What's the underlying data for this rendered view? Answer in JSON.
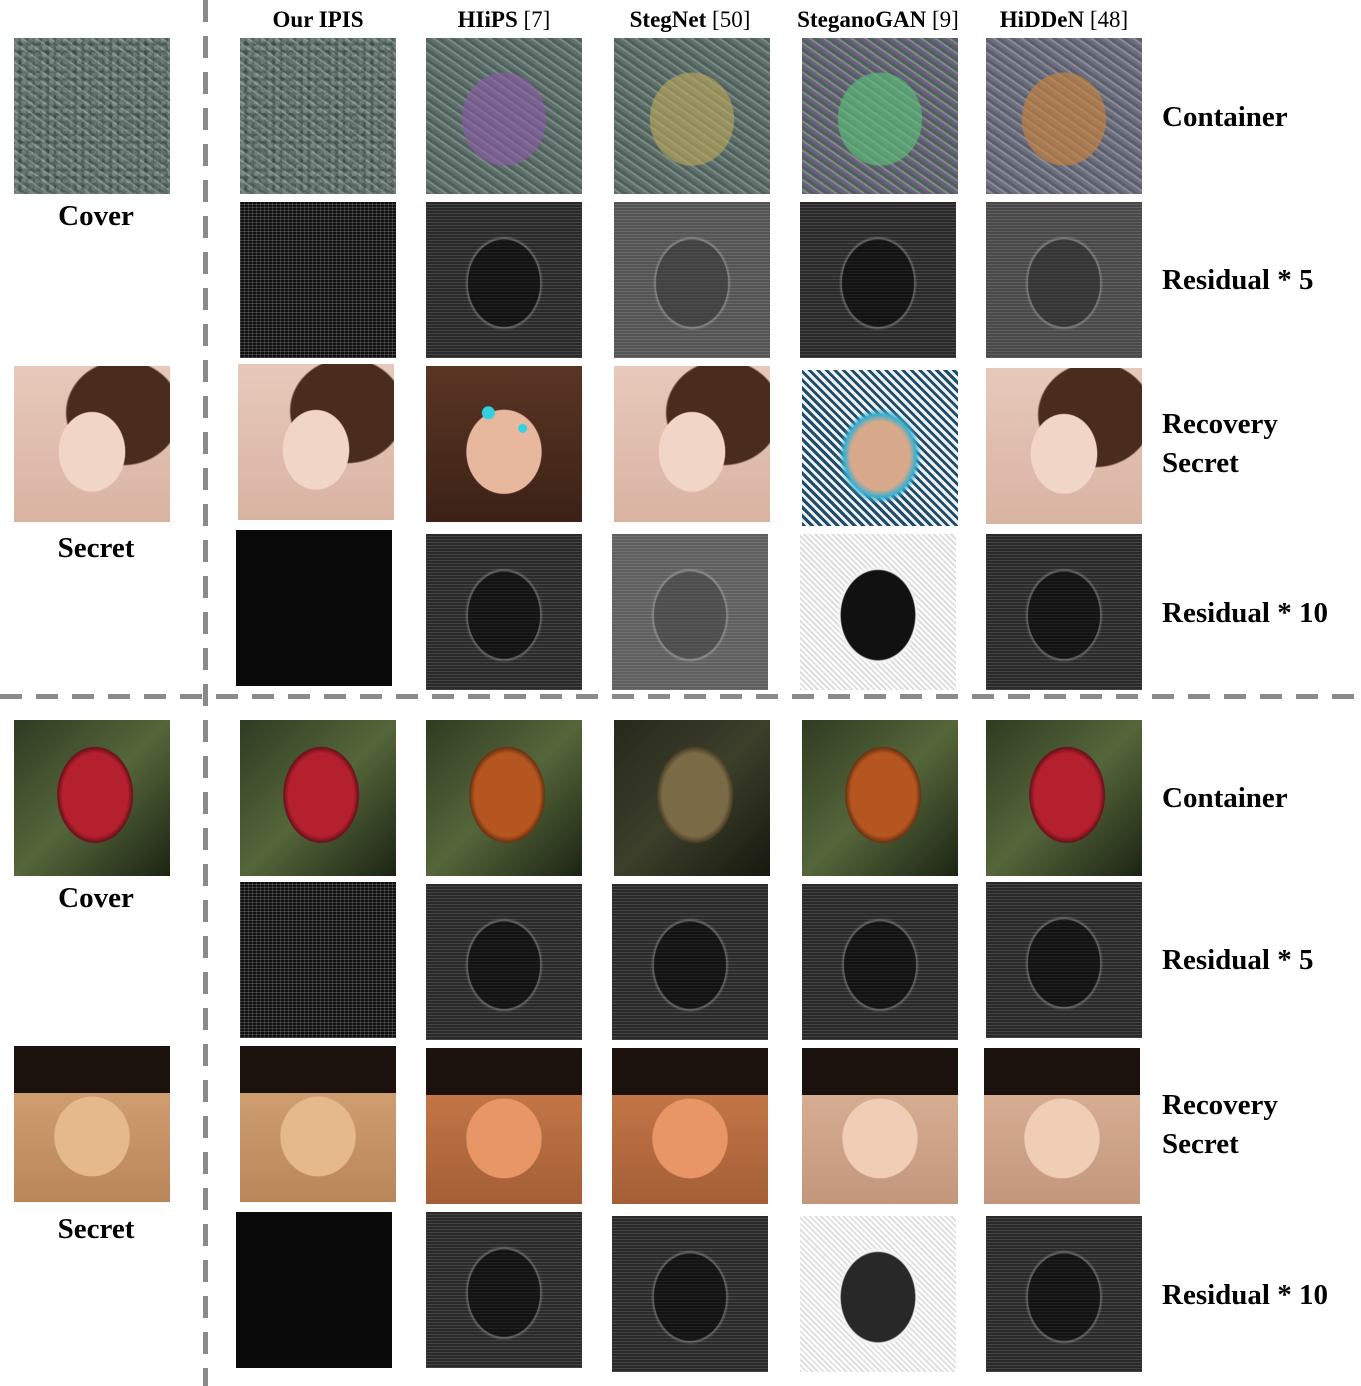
{
  "columns": [
    {
      "name": "Our IPIS",
      "ref": ""
    },
    {
      "name": "HIiPS",
      "ref": "[7]"
    },
    {
      "name": "StegNet",
      "ref": "[50]"
    },
    {
      "name": "SteganoGAN",
      "ref": "[9]"
    },
    {
      "name": "HiDDeN",
      "ref": "[48]"
    }
  ],
  "left_labels": {
    "cover_1": "Cover",
    "secret_1": "Secret",
    "cover_2": "Cover",
    "secret_2": "Secret"
  },
  "row_labels": {
    "container_1": "Container",
    "residual5_1": "Residual * 5",
    "recovery_1_a": "Recovery",
    "recovery_1_b": "Secret",
    "residual10_1": "Residual * 10",
    "container_2": "Container",
    "residual5_2": "Residual * 5",
    "recovery_2_a": "Recovery",
    "recovery_2_b": "Secret",
    "residual10_2": "Residual * 10"
  }
}
